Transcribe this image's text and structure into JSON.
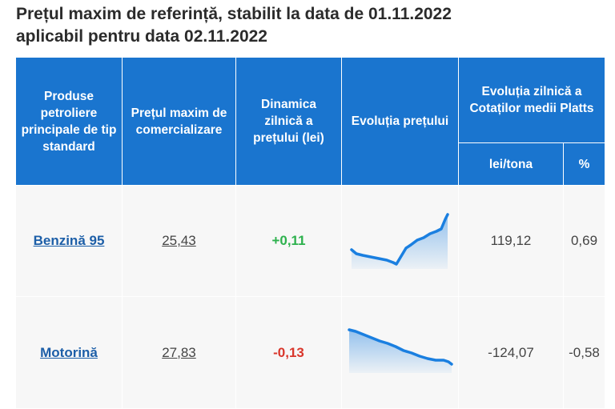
{
  "title": {
    "line1": "Prețul maxim de referință, stabilit la data de 01.11.2022",
    "line2": "aplicabil pentru data 02.11.2022"
  },
  "table": {
    "headers": {
      "product": "Produse petroliere principale de tip standard",
      "max_price": "Prețul maxim de comercializare",
      "daily_dynamics": "Dinamica zilnică a prețului (lei)",
      "price_evolution": "Evoluția prețului",
      "platts": "Evoluția zilnică a Cotaților medii Platts",
      "platts_lei": "lei/tona",
      "platts_pct": "%"
    },
    "rows": [
      {
        "product": "Benzină 95",
        "price": "25,43",
        "dynamics": "+0,11",
        "trend": "up",
        "platts_lei": "119,12",
        "platts_pct": "0,69"
      },
      {
        "product": "Motorină",
        "price": "27,83",
        "dynamics": "-0,13",
        "trend": "down",
        "platts_lei": "-124,07",
        "platts_pct": "-0,58"
      }
    ]
  },
  "colors": {
    "header_bg": "#1a75cf",
    "positive": "#2db14d",
    "negative": "#d9362b",
    "sparkline": "#1a7fe0"
  }
}
